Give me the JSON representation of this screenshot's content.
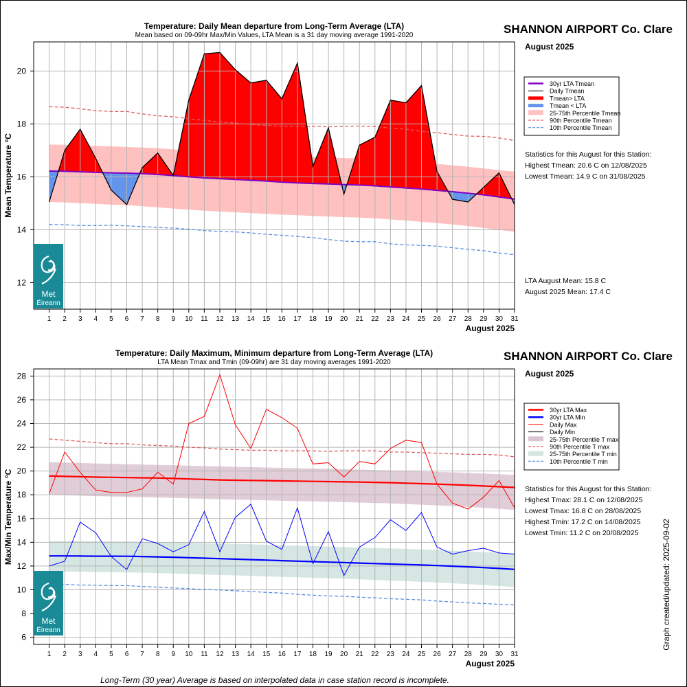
{
  "footer_note": "Long-Term (30 year) Average is based on interpolated data in case station record is incomplete.",
  "created_label": "Graph created/updated:  2025-09-02",
  "logo_text": [
    "Met",
    "Éireann"
  ],
  "colors": {
    "red": "#ff0000",
    "blue": "#0000ff",
    "purple": "#8000c0",
    "below": "#6495ed",
    "pink": "#ffc0c0",
    "mauve": "#dcc4d0",
    "sage": "#d4e6e2",
    "tealLogo": "#1a8a96"
  },
  "chart_data": [
    {
      "type": "area",
      "title": "Temperature: Daily Mean departure from Long-Term Average (LTA)",
      "subtitle": "Mean based on 09-09hr Max/Min Values, LTA Mean is a 31 day moving average 1991-2020",
      "station": "SHANNON AIRPORT Co. Clare",
      "period": "August 2025",
      "xlabel": "August 2025",
      "ylabel": "Mean Temperature °C",
      "x": [
        1,
        2,
        3,
        4,
        5,
        6,
        7,
        8,
        9,
        10,
        11,
        12,
        13,
        14,
        15,
        16,
        17,
        18,
        19,
        20,
        21,
        22,
        23,
        24,
        25,
        26,
        27,
        28,
        29,
        30,
        31
      ],
      "xlim": [
        0,
        31
      ],
      "ylim": [
        11,
        21.1
      ],
      "yticks": [
        12,
        14,
        16,
        18,
        20
      ],
      "grid": true,
      "legend_position": "right",
      "legend": [
        "30yr LTA Tmean",
        "Daily Tmean",
        "Tmean> LTA",
        "Tmean < LTA",
        "25-75th Percentile Tmean",
        "90th Percentile Tmean",
        "10th Percentile Tmean"
      ],
      "series": {
        "daily_tmean": [
          15.05,
          17.0,
          17.8,
          16.7,
          15.5,
          14.95,
          16.35,
          16.9,
          16.05,
          18.9,
          20.65,
          20.7,
          20.05,
          19.55,
          19.65,
          18.95,
          20.3,
          16.4,
          17.85,
          15.35,
          17.2,
          17.5,
          18.9,
          18.8,
          19.45,
          16.2,
          15.15,
          15.05,
          15.6,
          16.15,
          14.95
        ],
        "lta_tmean": [
          16.22,
          16.21,
          16.19,
          16.17,
          16.15,
          16.14,
          16.12,
          16.09,
          16.05,
          16.0,
          15.96,
          15.93,
          15.9,
          15.87,
          15.84,
          15.8,
          15.77,
          15.75,
          15.73,
          15.71,
          15.69,
          15.66,
          15.62,
          15.58,
          15.54,
          15.49,
          15.44,
          15.38,
          15.32,
          15.24,
          15.16
        ],
        "p25_tmean": [
          15.05,
          15.03,
          15.01,
          14.98,
          14.95,
          14.93,
          14.89,
          14.85,
          14.8,
          14.76,
          14.72,
          14.69,
          14.66,
          14.63,
          14.6,
          14.57,
          14.55,
          14.52,
          14.5,
          14.48,
          14.46,
          14.43,
          14.39,
          14.35,
          14.3,
          14.25,
          14.2,
          14.14,
          14.07,
          13.99,
          13.93
        ],
        "p75_tmean": [
          17.22,
          17.21,
          17.19,
          17.17,
          17.15,
          17.13,
          17.11,
          17.08,
          17.04,
          17.0,
          16.95,
          16.92,
          16.89,
          16.86,
          16.83,
          16.8,
          16.77,
          16.75,
          16.73,
          16.71,
          16.69,
          16.66,
          16.62,
          16.58,
          16.54,
          16.49,
          16.44,
          16.38,
          16.32,
          16.25,
          16.2
        ],
        "p90_tmean": [
          18.65,
          18.63,
          18.57,
          18.5,
          18.47,
          18.47,
          18.38,
          18.31,
          18.27,
          18.2,
          18.13,
          18.08,
          18.03,
          17.98,
          17.94,
          17.92,
          17.91,
          17.91,
          17.89,
          17.91,
          17.92,
          17.9,
          17.84,
          17.8,
          17.72,
          17.67,
          17.6,
          17.54,
          17.53,
          17.47,
          17.37
        ],
        "p10_tmean": [
          14.2,
          14.19,
          14.16,
          14.16,
          14.17,
          14.15,
          14.12,
          14.09,
          14.06,
          14.02,
          13.97,
          13.94,
          13.92,
          13.88,
          13.83,
          13.79,
          13.75,
          13.7,
          13.63,
          13.57,
          13.55,
          13.55,
          13.47,
          13.43,
          13.41,
          13.38,
          13.32,
          13.26,
          13.21,
          13.12,
          13.06
        ]
      },
      "statistics": {
        "heading": "Statistics for this August for this Station:",
        "lines": [
          "Highest Tmean: 20.6 C on 12/08/2025",
          "Lowest Tmean: 14.9 C on 31/08/2025"
        ],
        "means": [
          "LTA August Mean: 15.8 C",
          "August 2025 Mean: 17.4 C"
        ]
      }
    },
    {
      "type": "line",
      "title": "Temperature: Daily Maximum, Minimum departure from Long-Term Average (LTA)",
      "subtitle": "LTA Mean Tmax and Tmin (09-09hr) are 31 day moving averages 1991-2020",
      "station": "SHANNON AIRPORT Co. Clare",
      "period": "August 2025",
      "xlabel": "August 2025",
      "ylabel": "Max/Min Temperature °C",
      "x": [
        1,
        2,
        3,
        4,
        5,
        6,
        7,
        8,
        9,
        10,
        11,
        12,
        13,
        14,
        15,
        16,
        17,
        18,
        19,
        20,
        21,
        22,
        23,
        24,
        25,
        26,
        27,
        28,
        29,
        30,
        31
      ],
      "xlim": [
        0,
        31
      ],
      "ylim": [
        5.4,
        28.6
      ],
      "yticks": [
        6,
        8,
        10,
        12,
        14,
        16,
        18,
        20,
        22,
        24,
        26,
        28
      ],
      "grid": true,
      "legend_position": "right",
      "legend": [
        "30yr LTA Max",
        "30yr LTA Min",
        "Daily Max",
        "Daily Min",
        "25-75th Percentile T max",
        "90th Percentile T max",
        "25-75th Percentile T min",
        "10th Percentile T min"
      ],
      "series": {
        "daily_max": [
          18.1,
          21.6,
          19.9,
          18.4,
          18.2,
          18.2,
          18.5,
          19.9,
          18.9,
          24.0,
          24.6,
          28.1,
          23.9,
          21.9,
          25.2,
          24.5,
          23.6,
          20.6,
          20.7,
          19.5,
          20.8,
          20.6,
          21.9,
          22.6,
          22.4,
          18.9,
          17.3,
          16.8,
          17.8,
          19.2,
          16.9
        ],
        "daily_min": [
          12.0,
          12.4,
          15.7,
          14.8,
          12.8,
          11.7,
          14.3,
          13.9,
          13.2,
          13.8,
          16.6,
          13.2,
          16.1,
          17.2,
          14.1,
          13.4,
          16.9,
          12.2,
          14.9,
          11.2,
          13.6,
          14.4,
          15.9,
          15.0,
          16.5,
          13.6,
          13.0,
          13.3,
          13.5,
          13.1,
          13.0
        ],
        "lta_max": [
          19.58,
          19.55,
          19.52,
          19.49,
          19.47,
          19.45,
          19.43,
          19.41,
          19.38,
          19.33,
          19.29,
          19.25,
          19.23,
          19.21,
          19.19,
          19.17,
          19.15,
          19.13,
          19.11,
          19.09,
          19.07,
          19.05,
          19.02,
          18.98,
          18.94,
          18.9,
          18.85,
          18.8,
          18.74,
          18.68,
          18.62
        ],
        "lta_min": [
          12.85,
          12.85,
          12.84,
          12.83,
          12.83,
          12.82,
          12.8,
          12.77,
          12.74,
          12.7,
          12.66,
          12.62,
          12.58,
          12.54,
          12.5,
          12.45,
          12.41,
          12.37,
          12.33,
          12.29,
          12.25,
          12.21,
          12.17,
          12.13,
          12.09,
          12.04,
          11.99,
          11.93,
          11.87,
          11.8,
          11.72
        ],
        "p25_max": [
          18.0,
          17.97,
          17.93,
          17.89,
          17.86,
          17.83,
          17.8,
          17.77,
          17.74,
          17.7,
          17.66,
          17.62,
          17.59,
          17.56,
          17.53,
          17.5,
          17.47,
          17.44,
          17.41,
          17.38,
          17.35,
          17.31,
          17.27,
          17.22,
          17.17,
          17.11,
          17.05,
          16.98,
          16.9,
          16.82,
          16.73
        ],
        "p75_max": [
          20.75,
          20.72,
          20.68,
          20.64,
          20.61,
          20.58,
          20.55,
          20.52,
          20.49,
          20.45,
          20.42,
          20.39,
          20.36,
          20.33,
          20.3,
          20.27,
          20.24,
          20.21,
          20.18,
          20.15,
          20.12,
          20.08,
          20.05,
          20.01,
          19.97,
          19.93,
          19.89,
          19.84,
          19.79,
          19.73,
          19.68
        ],
        "p90_max": [
          22.7,
          22.6,
          22.5,
          22.4,
          22.3,
          22.3,
          22.2,
          22.15,
          22.1,
          22.0,
          21.95,
          21.85,
          21.8,
          21.75,
          21.75,
          21.7,
          21.7,
          21.7,
          21.65,
          21.7,
          21.7,
          21.7,
          21.6,
          21.6,
          21.55,
          21.5,
          21.45,
          21.4,
          21.4,
          21.35,
          21.2
        ],
        "p25_min": [
          11.55,
          11.54,
          11.52,
          11.5,
          11.48,
          11.46,
          11.44,
          11.41,
          11.37,
          11.33,
          11.29,
          11.25,
          11.21,
          11.17,
          11.13,
          11.09,
          11.05,
          11.01,
          10.97,
          10.93,
          10.88,
          10.83,
          10.78,
          10.73,
          10.67,
          10.61,
          10.55,
          10.48,
          10.4,
          10.32,
          10.23
        ],
        "p75_min": [
          14.1,
          14.1,
          14.09,
          14.08,
          14.07,
          14.06,
          14.04,
          14.02,
          13.99,
          13.96,
          13.93,
          13.9,
          13.87,
          13.83,
          13.79,
          13.75,
          13.71,
          13.68,
          13.64,
          13.6,
          13.56,
          13.52,
          13.48,
          13.44,
          13.4,
          13.35,
          13.3,
          13.24,
          13.18,
          13.12,
          13.05
        ],
        "p10_min": [
          10.4,
          10.45,
          10.4,
          10.38,
          10.35,
          10.35,
          10.28,
          10.22,
          10.15,
          10.1,
          10.02,
          9.98,
          9.92,
          9.85,
          9.78,
          9.72,
          9.62,
          9.55,
          9.48,
          9.45,
          9.38,
          9.32,
          9.25,
          9.2,
          9.15,
          9.05,
          8.98,
          8.9,
          8.85,
          8.78,
          8.72
        ]
      },
      "statistics": {
        "heading": "Statistics for this August for this Station:",
        "lines": [
          "Highest Tmax: 28.1 C on 12/08/2025",
          "Lowest Tmax: 16.8 C on 28/08/2025",
          "Highest Tmin: 17.2 C on 14/08/2025",
          "Lowest Tmin: 11.2 C on 20/08/2025"
        ]
      }
    }
  ]
}
